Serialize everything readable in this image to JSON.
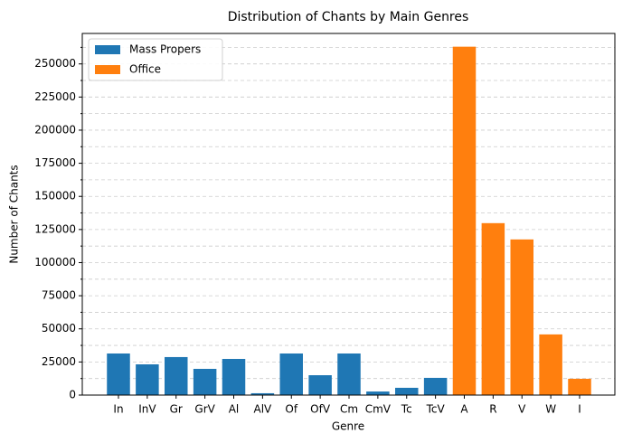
{
  "chart_data": {
    "type": "bar",
    "title": "Distribution of Chants by Main Genres",
    "xlabel": "Genre",
    "ylabel": "Number of Chants",
    "categories": [
      "In",
      "InV",
      "Gr",
      "GrV",
      "Al",
      "AlV",
      "Of",
      "OfV",
      "Cm",
      "CmV",
      "Tc",
      "TcV",
      "A",
      "R",
      "V",
      "W",
      "I"
    ],
    "series": [
      {
        "name": "Mass Propers",
        "color": "#1f77b4",
        "values": [
          31400,
          23200,
          28700,
          19800,
          27300,
          1400,
          31400,
          15000,
          31400,
          2700,
          5500,
          13000,
          null,
          null,
          null,
          null,
          null
        ]
      },
      {
        "name": "Office",
        "color": "#ff7f0e",
        "values": [
          null,
          null,
          null,
          null,
          null,
          null,
          null,
          null,
          null,
          null,
          null,
          null,
          263000,
          129800,
          117500,
          45800,
          12300
        ]
      }
    ],
    "ylim": [
      0,
      273000
    ],
    "yticks": [
      0,
      25000,
      50000,
      75000,
      100000,
      125000,
      150000,
      175000,
      200000,
      225000,
      250000
    ],
    "yminorticks": [
      12500,
      37500,
      62500,
      87500,
      112500,
      137500,
      162500,
      187500,
      212500,
      237500,
      262500
    ],
    "grid": true,
    "legend": "upper left"
  }
}
